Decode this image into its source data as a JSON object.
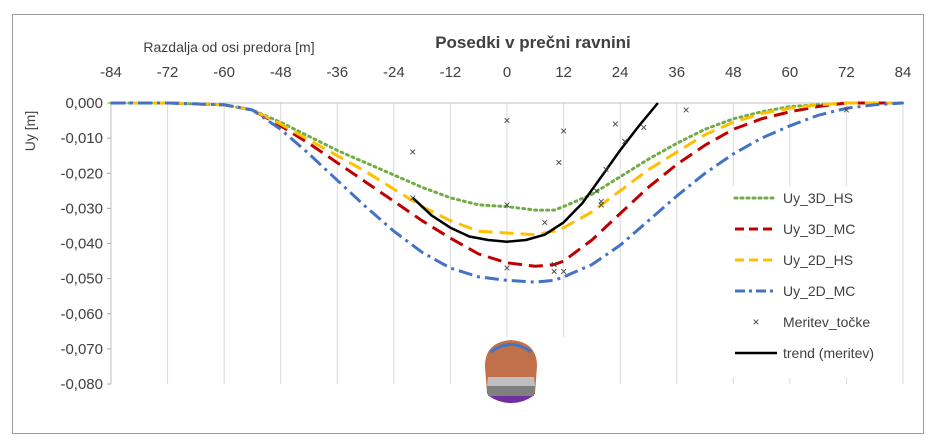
{
  "chart_data": {
    "type": "line",
    "title": "Posedki v  prečni ravnini",
    "xlabel": "Razdalja od osi predora [m]",
    "ylabel": "Uy [m]",
    "xlim": [
      -84,
      84
    ],
    "ylim": [
      -0.08,
      0.0
    ],
    "x_ticks": [
      "-84",
      "-72",
      "-60",
      "-48",
      "-36",
      "-24",
      "-12",
      "0",
      "12",
      "24",
      "36",
      "48",
      "60",
      "72",
      "84"
    ],
    "y_ticks": [
      "0,000",
      "-0,010",
      "-0,020",
      "-0,030",
      "-0,040",
      "-0,050",
      "-0,060",
      "-0,070",
      "-0,080"
    ],
    "grid": "vertical",
    "x_axis_position": "top",
    "legend_position": "right",
    "series": [
      {
        "name": "Uy_3D_HS",
        "color": "#70ad47",
        "style": "dotted",
        "x": [
          -84,
          -72,
          -60,
          -54,
          -48,
          -42,
          -36,
          -30,
          -24,
          -18,
          -12,
          -6,
          0,
          6,
          10,
          12,
          18,
          24,
          30,
          36,
          42,
          48,
          54,
          60,
          66,
          72,
          78,
          84
        ],
        "y": [
          0,
          0,
          -0.0005,
          -0.002,
          -0.0055,
          -0.0095,
          -0.0135,
          -0.017,
          -0.0205,
          -0.024,
          -0.027,
          -0.029,
          -0.0295,
          -0.0305,
          -0.0305,
          -0.0295,
          -0.026,
          -0.021,
          -0.016,
          -0.0115,
          -0.0075,
          -0.0045,
          -0.0025,
          -0.001,
          -0.0005,
          0,
          0,
          0
        ]
      },
      {
        "name": "Uy_3D_MC",
        "color": "#c00000",
        "style": "dashed",
        "x": [
          -84,
          -72,
          -60,
          -54,
          -48,
          -42,
          -36,
          -30,
          -24,
          -18,
          -12,
          -6,
          0,
          6,
          10,
          12,
          18,
          24,
          30,
          36,
          42,
          48,
          54,
          60,
          66,
          72,
          78,
          84
        ],
        "y": [
          0,
          0,
          -0.0005,
          -0.002,
          -0.0065,
          -0.0115,
          -0.017,
          -0.0225,
          -0.028,
          -0.0335,
          -0.0385,
          -0.043,
          -0.0455,
          -0.0465,
          -0.046,
          -0.045,
          -0.039,
          -0.0315,
          -0.024,
          -0.0175,
          -0.012,
          -0.0075,
          -0.0045,
          -0.0025,
          -0.001,
          0,
          0,
          0
        ]
      },
      {
        "name": "Uy_2D_HS",
        "color": "#ffc000",
        "style": "dashed",
        "x": [
          -84,
          -72,
          -60,
          -54,
          -48,
          -42,
          -36,
          -30,
          -24,
          -18,
          -12,
          -6,
          0,
          6,
          10,
          12,
          18,
          24,
          30,
          36,
          42,
          48,
          54,
          60,
          66,
          72,
          78,
          84
        ],
        "y": [
          0,
          0,
          -0.0005,
          -0.002,
          -0.006,
          -0.0105,
          -0.015,
          -0.0195,
          -0.0245,
          -0.0295,
          -0.0335,
          -0.0365,
          -0.037,
          -0.0375,
          -0.0365,
          -0.0355,
          -0.031,
          -0.025,
          -0.019,
          -0.014,
          -0.009,
          -0.0055,
          -0.003,
          -0.0015,
          -0.0005,
          0,
          0,
          0
        ]
      },
      {
        "name": "Uy_2D_MC",
        "color": "#4472c4",
        "style": "dashdot",
        "x": [
          -84,
          -72,
          -60,
          -54,
          -48,
          -42,
          -36,
          -30,
          -24,
          -18,
          -12,
          -6,
          0,
          6,
          10,
          12,
          18,
          24,
          30,
          36,
          42,
          48,
          54,
          60,
          66,
          72,
          78,
          84
        ],
        "y": [
          0,
          0,
          -0.0005,
          -0.002,
          -0.0075,
          -0.0145,
          -0.022,
          -0.0295,
          -0.0365,
          -0.0425,
          -0.047,
          -0.0495,
          -0.0505,
          -0.051,
          -0.0505,
          -0.0495,
          -0.046,
          -0.0405,
          -0.0335,
          -0.0265,
          -0.02,
          -0.0145,
          -0.01,
          -0.0065,
          -0.0035,
          -0.0015,
          -0.0005,
          0
        ]
      },
      {
        "name": "Meritev_točke",
        "color": "#404040",
        "style": "markers",
        "x": [
          -20,
          -20,
          0,
          0,
          0,
          8,
          10,
          10,
          11,
          12,
          12,
          19,
          20,
          20,
          21,
          23,
          25,
          29,
          38,
          72
        ],
        "y": [
          -0.014,
          -0.027,
          -0.005,
          -0.029,
          -0.047,
          -0.034,
          -0.046,
          -0.048,
          -0.017,
          -0.048,
          -0.008,
          -0.025,
          -0.028,
          -0.029,
          -0.019,
          -0.006,
          -0.011,
          -0.007,
          -0.002,
          -0.002
        ]
      },
      {
        "name": "trend (meritev)",
        "color": "#000000",
        "style": "solid",
        "x": [
          -20,
          -16,
          -12,
          -8,
          -4,
          0,
          4,
          8,
          12,
          16,
          20,
          24,
          28,
          32
        ],
        "y": [
          -0.027,
          -0.032,
          -0.0355,
          -0.038,
          -0.039,
          -0.0395,
          -0.039,
          -0.0375,
          -0.034,
          -0.0285,
          -0.021,
          -0.0135,
          -0.0065,
          0.0
        ]
      }
    ]
  }
}
